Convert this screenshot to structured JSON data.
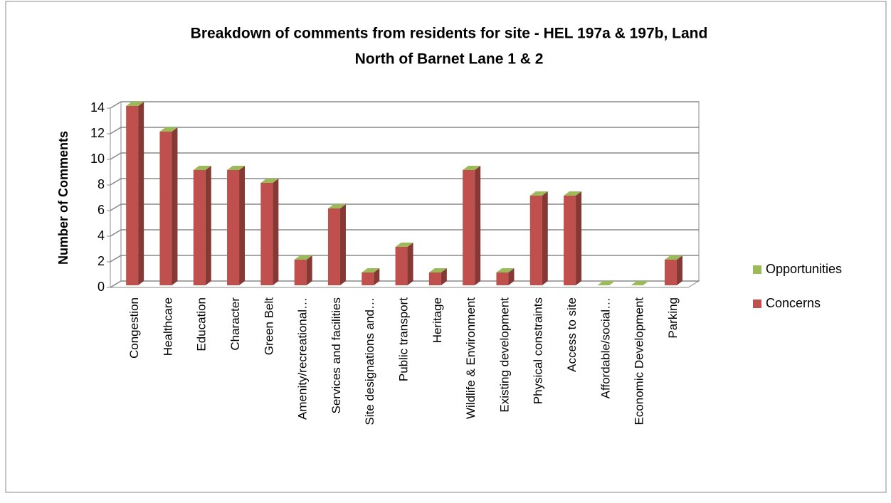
{
  "chart_data": {
    "type": "bar3d",
    "title": [
      "Breakdown of comments from residents for site - HEL 197a & 197b, Land",
      "North of Barnet Lane 1 & 2"
    ],
    "y_label": "Number of Comments",
    "categories": [
      "Congestion",
      "Healthcare",
      "Education",
      "Character",
      "Green Belt",
      "Amenity/recreational…",
      "Services and facilities",
      "Site designations and…",
      "Public transport",
      "Heritage",
      "Wildlife & Environment",
      "Existing development",
      "Physical constraints",
      "Access to site",
      "Affordable/social…",
      "Economic Development",
      "Parking"
    ],
    "series": [
      {
        "name": "Concerns",
        "color": "#c0504d",
        "values": [
          14,
          12,
          9,
          9,
          8,
          2,
          6,
          1,
          3,
          1,
          9,
          1,
          7,
          7,
          0,
          0,
          2
        ]
      },
      {
        "name": "Opportunities",
        "color": "#9bbb59",
        "values": [
          0,
          0,
          0,
          0,
          0,
          0,
          0,
          0,
          0,
          0,
          0,
          0,
          0,
          0,
          0,
          0,
          0
        ]
      }
    ],
    "stacked": true,
    "ylim": [
      0,
      14
    ],
    "yticks": [
      0,
      2,
      4,
      6,
      8,
      10,
      12,
      14
    ],
    "grid": true,
    "legend": "right"
  }
}
